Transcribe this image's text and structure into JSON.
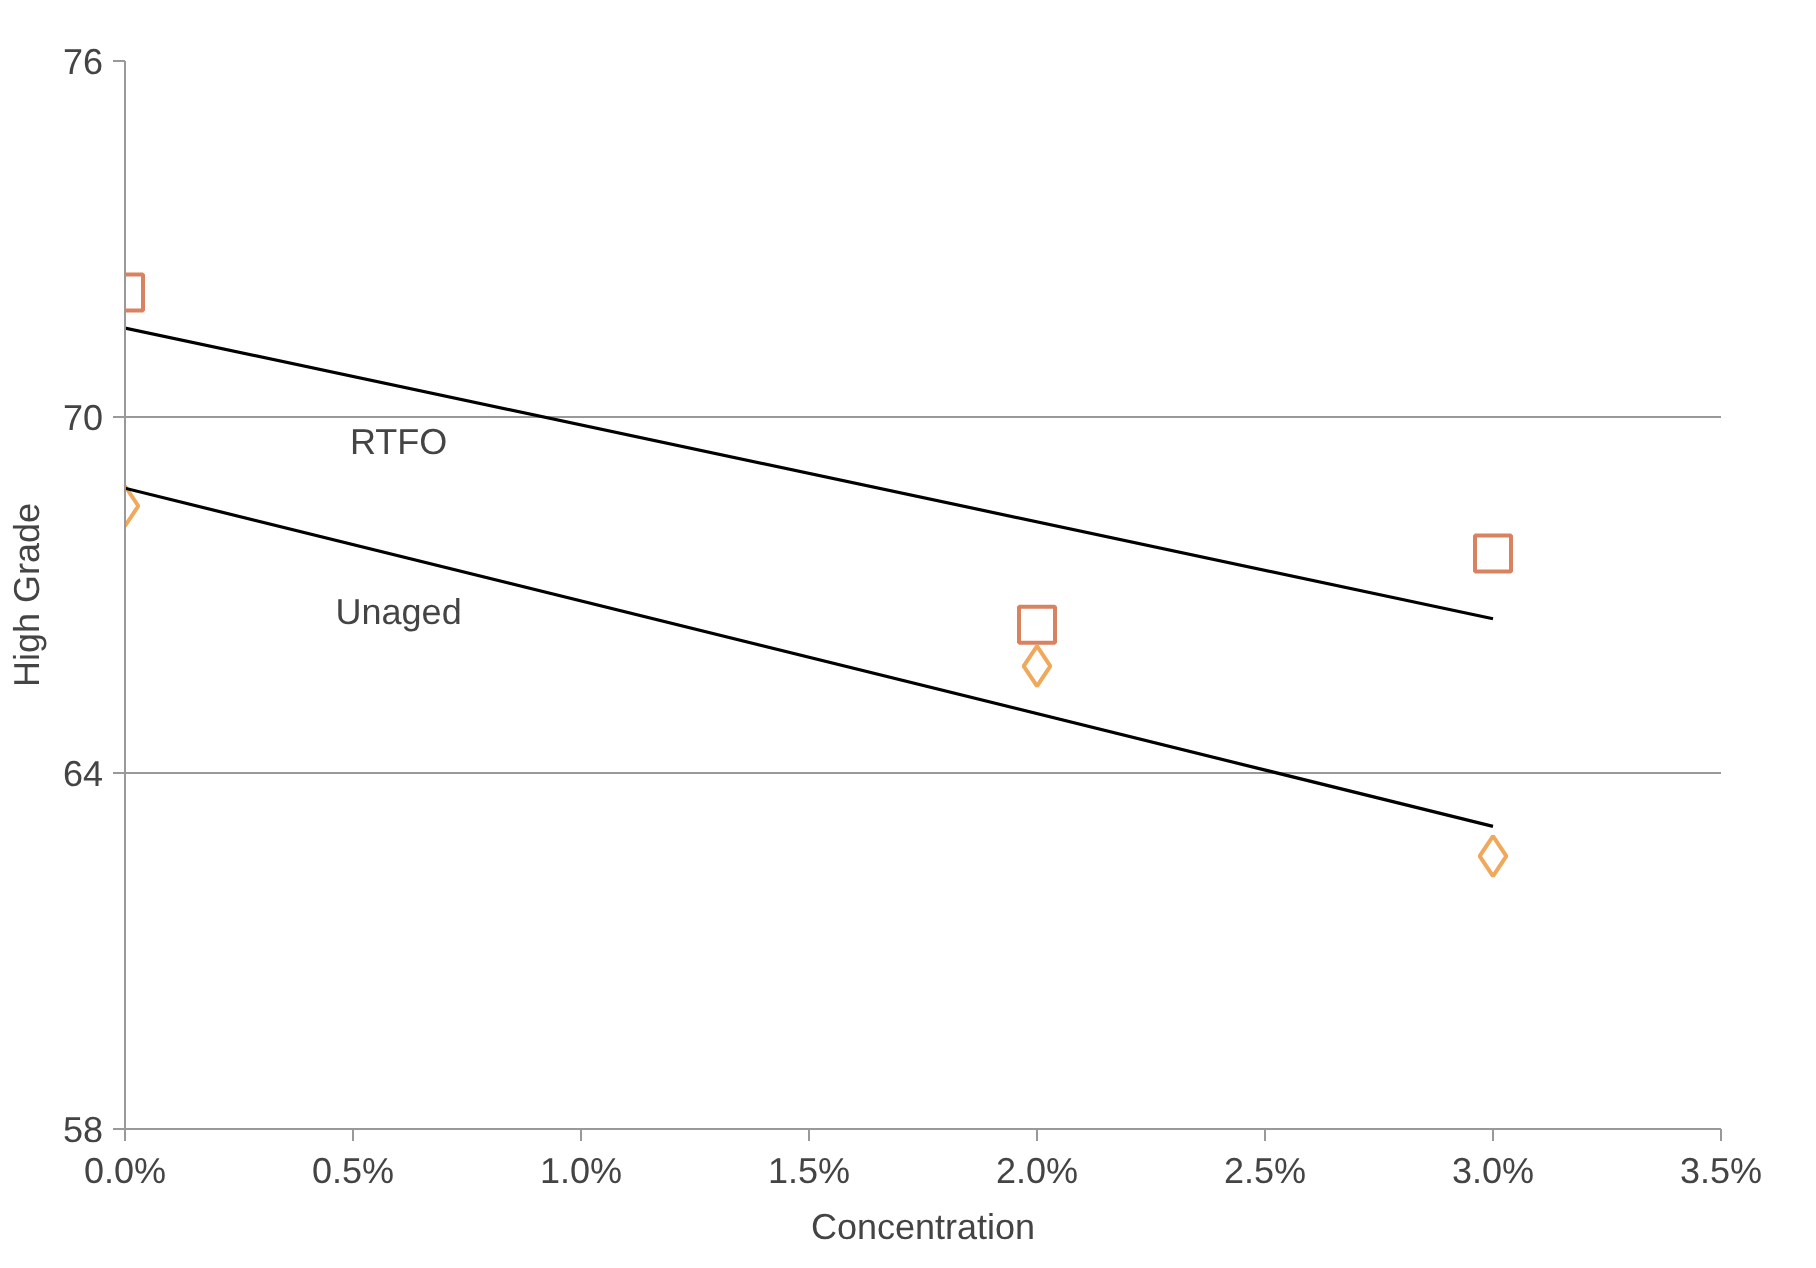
{
  "chart_data": {
    "type": "scatter",
    "xlabel": "Concentration",
    "ylabel": "High Grade",
    "xlim": [
      0,
      3.5
    ],
    "xticks": [
      {
        "value": 0,
        "label": "0.0%"
      },
      {
        "value": 0.5,
        "label": "0.5%"
      },
      {
        "value": 1,
        "label": "1.0%"
      },
      {
        "value": 1.5,
        "label": "1.5%"
      },
      {
        "value": 2,
        "label": "2.0%"
      },
      {
        "value": 2.5,
        "label": "2.5%"
      },
      {
        "value": 3,
        "label": "3.0%"
      },
      {
        "value": 3.5,
        "label": "3.5%"
      }
    ],
    "ylim": [
      58,
      76
    ],
    "yticks": [
      58,
      64,
      70,
      76
    ],
    "grid": "y",
    "series": [
      {
        "marker": "square",
        "color": "#d9825f",
        "x": [
          0,
          2,
          3
        ],
        "values": [
          72.1,
          66.5,
          67.7
        ]
      },
      {
        "marker": "diamond",
        "color": "#f0a95a",
        "x": [
          0,
          2,
          3
        ],
        "values": [
          68.5,
          65.8,
          62.6
        ]
      },
      {
        "type": "line",
        "name": "RTFO",
        "color": "#000000",
        "x": [
          0,
          3
        ],
        "values": [
          71.5,
          66.6
        ]
      },
      {
        "type": "line",
        "name": "Unaged",
        "color": "#000000",
        "x": [
          0,
          3
        ],
        "values": [
          68.8,
          63.1
        ]
      }
    ]
  }
}
